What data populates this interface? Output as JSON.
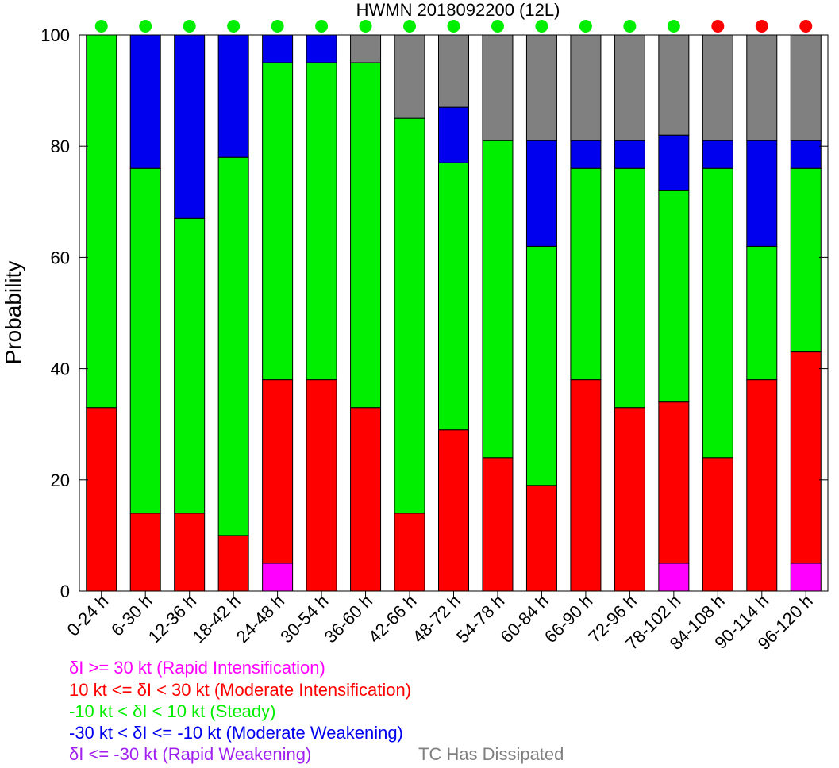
{
  "chart_data": {
    "type": "bar",
    "stacked": true,
    "title": "HWMN 2018092200  (12L)",
    "ylabel": "Probability",
    "xlabel": "",
    "ylim": [
      0,
      100
    ],
    "yticks": [
      0,
      20,
      40,
      60,
      80,
      100
    ],
    "categories": [
      "0-24 h",
      "6-30 h",
      "12-36 h",
      "18-42 h",
      "24-48 h",
      "30-54 h",
      "36-60 h",
      "42-66 h",
      "48-72 h",
      "54-78 h",
      "60-84 h",
      "66-90 h",
      "72-96 h",
      "78-102 h",
      "84-108 h",
      "90-114 h",
      "96-120 h"
    ],
    "series": [
      {
        "name": "δI >= 30 kt (Rapid Intensification)",
        "color": "#ff00ff",
        "values": [
          0,
          0,
          0,
          0,
          5,
          0,
          0,
          0,
          0,
          0,
          0,
          0,
          0,
          5,
          0,
          0,
          5
        ]
      },
      {
        "name": "10 kt <= δI < 30 kt (Moderate Intensification)",
        "color": "#ff0000",
        "values": [
          33,
          14,
          14,
          10,
          33,
          38,
          33,
          14,
          29,
          24,
          19,
          38,
          33,
          29,
          24,
          38,
          38
        ]
      },
      {
        "name": "-10 kt < δI < 10 kt (Steady)",
        "color": "#00ee00",
        "values": [
          67,
          62,
          53,
          68,
          57,
          57,
          62,
          71,
          48,
          57,
          43,
          38,
          43,
          38,
          52,
          24,
          33
        ]
      },
      {
        "name": "-30 kt < δI <= -10 kt (Moderate Weakening)",
        "color": "#0000ee",
        "values": [
          0,
          24,
          33,
          22,
          5,
          5,
          0,
          0,
          10,
          0,
          19,
          5,
          5,
          10,
          5,
          19,
          5
        ]
      },
      {
        "name": "δI <= -30 kt (Rapid Weakening)",
        "color": "#a020f0",
        "values": [
          0,
          0,
          0,
          0,
          0,
          0,
          0,
          0,
          0,
          0,
          0,
          0,
          0,
          0,
          0,
          0,
          0
        ]
      },
      {
        "name": "TC Has Dissipated",
        "color": "#808080",
        "values": [
          0,
          0,
          0,
          0,
          0,
          0,
          5,
          15,
          13,
          19,
          19,
          19,
          19,
          18,
          19,
          19,
          19
        ]
      }
    ],
    "status_dots": [
      "#00ee00",
      "#00ee00",
      "#00ee00",
      "#00ee00",
      "#00ee00",
      "#00ee00",
      "#00ee00",
      "#00ee00",
      "#00ee00",
      "#00ee00",
      "#00ee00",
      "#00ee00",
      "#00ee00",
      "#00ee00",
      "#ff0000",
      "#ff0000",
      "#ff0000"
    ],
    "grid": false,
    "legend_position": "bottom-left"
  }
}
